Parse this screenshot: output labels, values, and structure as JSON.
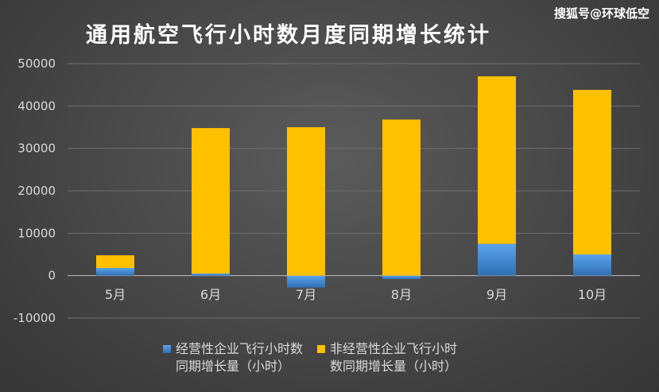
{
  "header": {
    "title": "通用航空飞行小时数月度同期增长统计",
    "watermark": "搜狐号@环球低空"
  },
  "colors": {
    "series_operating": "#4a90d9",
    "series_non_operating": "#ffc000"
  },
  "chart_data": {
    "type": "bar",
    "stacked": true,
    "title": "通用航空飞行小时数月度同期增长统计",
    "categories": [
      "5月",
      "6月",
      "7月",
      "8月",
      "9月",
      "10月"
    ],
    "series": [
      {
        "name": "经营性企业飞行小时数\n同期增长量（小时）",
        "values": [
          1800,
          500,
          -2800,
          -800,
          7500,
          5000
        ]
      },
      {
        "name": "非经营性企业飞行小时\n数同期增长量（小时）",
        "values": [
          3000,
          34300,
          35000,
          36800,
          39500,
          38800
        ]
      }
    ],
    "ylim": [
      -10000,
      50000
    ],
    "yticks": [
      "-10000",
      "0",
      "10000",
      "20000",
      "30000",
      "40000",
      "50000"
    ],
    "grid": true,
    "legend": "bottom"
  }
}
